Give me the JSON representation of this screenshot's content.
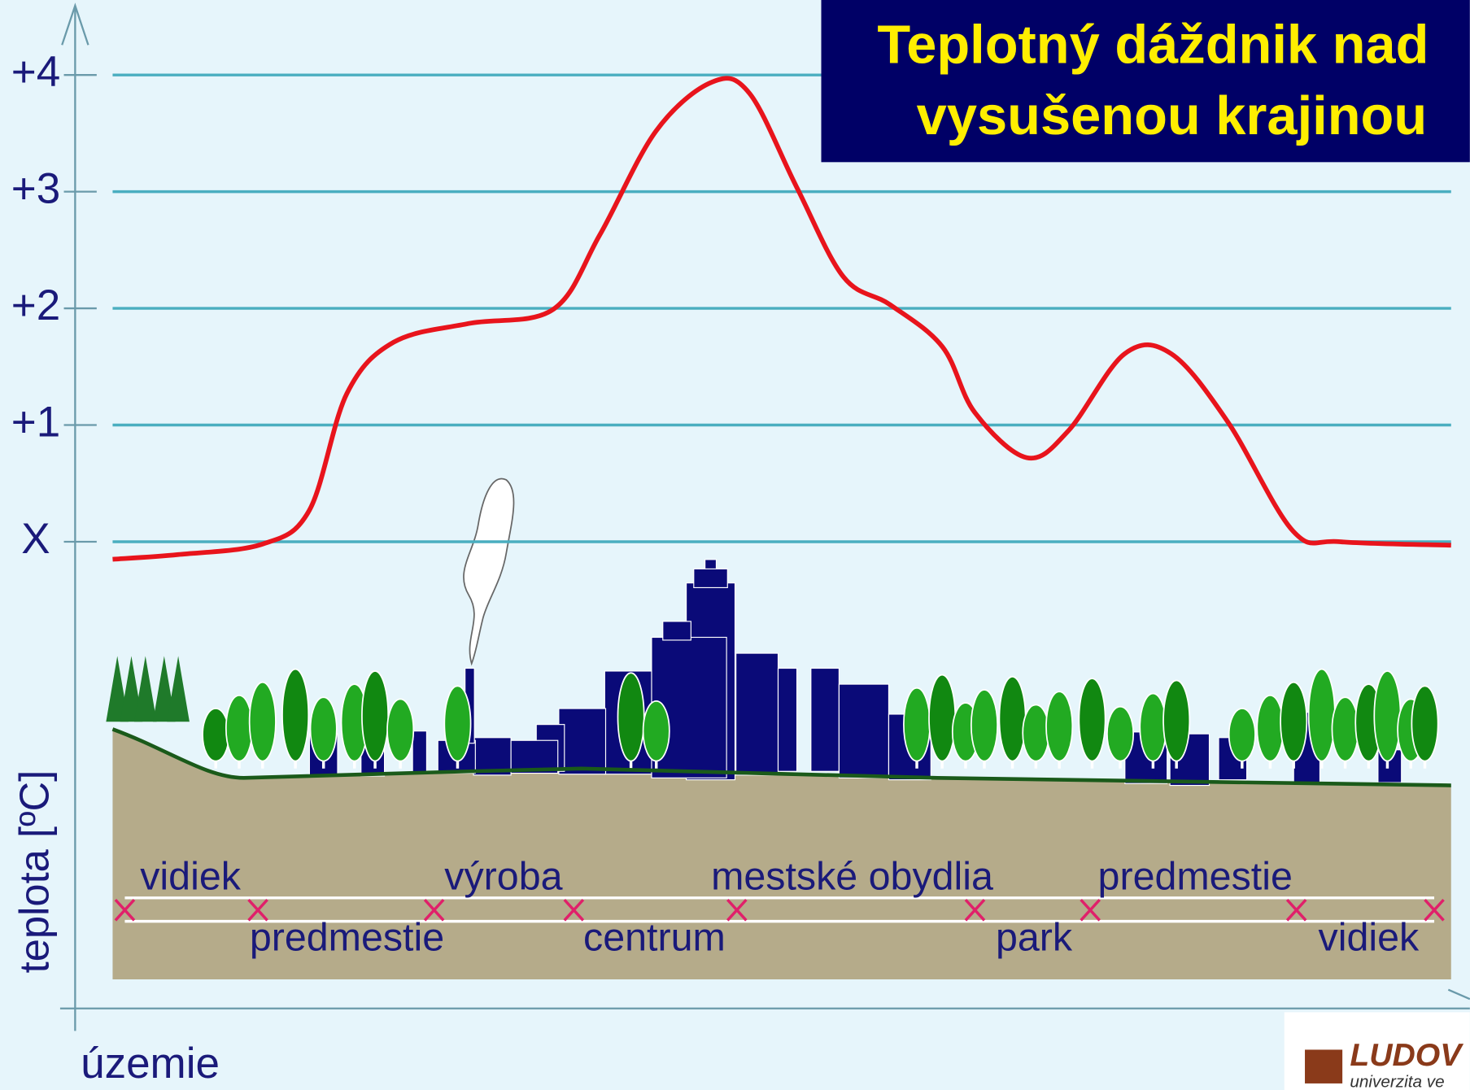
{
  "chart_data": {
    "type": "line",
    "title": [
      "Teplotný dáždnik nad",
      "vysušenou krajinou"
    ],
    "ylabel": "teplota [ºC]",
    "xlabel": "územie",
    "x": [
      0,
      4.9,
      11.2,
      14.7,
      17.5,
      21,
      26.6,
      32.9,
      36.4,
      40.6,
      44.8,
      47.6,
      51.1,
      54.6,
      58.1,
      62,
      64.4,
      68.3,
      71.4,
      75.6,
      79.1,
      83.3,
      88.2,
      91.7,
      100
    ],
    "xlim": [
      0,
      100
    ],
    "series": [
      {
        "name": null,
        "color": "#e8141c",
        "values": [
          -0.15,
          -0.11,
          -0.02,
          0.27,
          1.27,
          1.71,
          1.87,
          1.99,
          2.63,
          3.52,
          3.94,
          3.84,
          3.04,
          2.27,
          2.03,
          1.67,
          1.11,
          0.72,
          0.95,
          1.61,
          1.61,
          1.03,
          0.09,
          0,
          -0.03
        ]
      }
    ],
    "ylim": [
      -4,
      4.5
    ],
    "yticks": [
      {
        "value": 0,
        "label": "X"
      },
      {
        "value": 1,
        "label": "+1"
      },
      {
        "value": 2,
        "label": "+2"
      },
      {
        "value": 3,
        "label": "+3"
      },
      {
        "value": 4,
        "label": "+4"
      }
    ],
    "grid": true,
    "zones": [
      "vidiek",
      "predmestie",
      "výroba",
      "centrum",
      "mestské obydlia",
      "park",
      "predmestie",
      "vidiek"
    ],
    "logo": [
      "LUDOV",
      "univerzita ve"
    ]
  }
}
